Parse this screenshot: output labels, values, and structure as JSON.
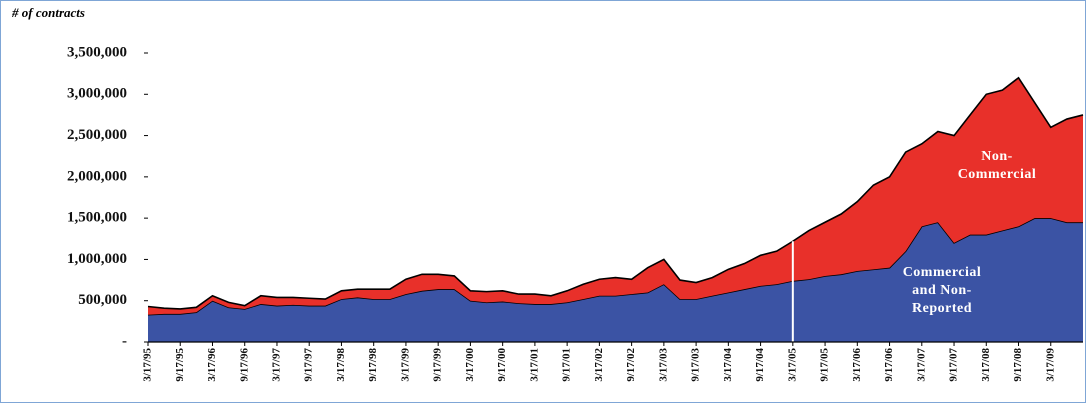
{
  "chart_data": {
    "type": "stacked_area",
    "y_label": "# of contracts",
    "categories": [
      "3/17/95",
      null,
      "9/17/95",
      null,
      "3/17/96",
      null,
      "9/17/96",
      null,
      "3/17/97",
      null,
      "9/17/97",
      null,
      "3/17/98",
      null,
      "9/17/98",
      null,
      "3/17/99",
      null,
      "9/17/99",
      null,
      "3/17/00",
      null,
      "9/17/00",
      null,
      "3/17/01",
      null,
      "9/17/01",
      null,
      "3/17/02",
      null,
      "9/17/02",
      null,
      "3/17/03",
      null,
      "9/17/03",
      null,
      "3/17/04",
      null,
      "9/17/04",
      null,
      "3/17/05",
      null,
      "9/17/05",
      null,
      "3/17/06",
      null,
      "9/17/06",
      null,
      "3/17/07",
      null,
      "9/17/07",
      null,
      "3/17/08",
      null,
      "9/17/08",
      null,
      "3/17/09",
      null,
      null
    ],
    "series": [
      {
        "name": "Commercial and Non-Reported",
        "label_lines": [
          "Commercial",
          "and Non-",
          "Reported"
        ],
        "color": "#3b53a4",
        "values": [
          330000,
          340000,
          340000,
          360000,
          500000,
          420000,
          400000,
          460000,
          440000,
          450000,
          440000,
          440000,
          520000,
          540000,
          520000,
          520000,
          580000,
          620000,
          640000,
          640000,
          500000,
          480000,
          490000,
          470000,
          460000,
          460000,
          480000,
          520000,
          560000,
          560000,
          580000,
          600000,
          700000,
          520000,
          520000,
          560000,
          600000,
          640000,
          680000,
          700000,
          740000,
          760000,
          800000,
          820000,
          860000,
          880000,
          900000,
          1100000,
          1400000,
          1450000,
          1200000,
          1300000,
          1300000,
          1350000,
          1400000,
          1500000,
          1500000,
          1450000,
          1450000
        ]
      },
      {
        "name": "Non-Commercial",
        "label_lines": [
          "Non-",
          "Commercial"
        ],
        "color": "#e8302a",
        "values": [
          100000,
          70000,
          60000,
          60000,
          60000,
          60000,
          40000,
          100000,
          100000,
          90000,
          90000,
          80000,
          100000,
          100000,
          120000,
          120000,
          180000,
          200000,
          180000,
          160000,
          120000,
          130000,
          130000,
          110000,
          120000,
          100000,
          140000,
          180000,
          200000,
          220000,
          180000,
          300000,
          300000,
          230000,
          200000,
          220000,
          280000,
          310000,
          370000,
          400000,
          480000,
          590000,
          650000,
          730000,
          840000,
          1020000,
          1100000,
          1200000,
          1000000,
          1100000,
          1300000,
          1450000,
          1700000,
          1700000,
          1800000,
          1400000,
          1100000,
          1250000,
          1300000
        ]
      }
    ],
    "ylim": [
      0,
      3500000
    ],
    "yticks": [
      {
        "value": 0,
        "label": "-"
      },
      {
        "value": 500000,
        "label": "500,000"
      },
      {
        "value": 1000000,
        "label": "1,000,000"
      },
      {
        "value": 1500000,
        "label": "1,500,000"
      },
      {
        "value": 2000000,
        "label": "2,000,000"
      },
      {
        "value": 2500000,
        "label": "2,500,000"
      },
      {
        "value": 3000000,
        "label": "3,000,000"
      },
      {
        "value": 3500000,
        "label": "3,500,000"
      }
    ],
    "vline": "3/17/05",
    "grid": false
  }
}
